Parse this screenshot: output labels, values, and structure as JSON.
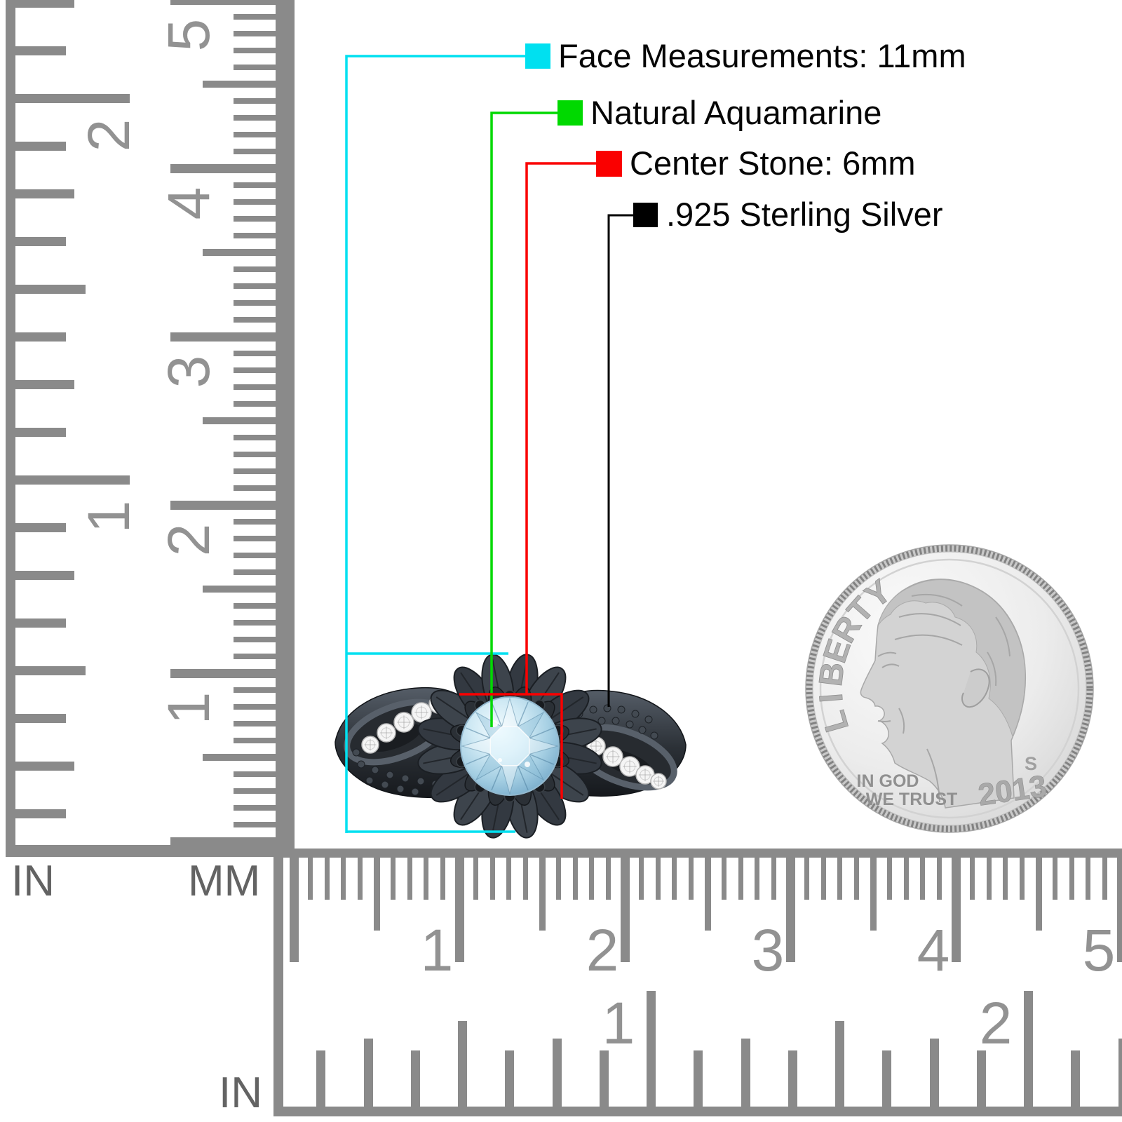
{
  "legend": {
    "items": [
      {
        "id": "face-measurements",
        "label": "Face Measurements: 11mm",
        "color": "#00e0f0"
      },
      {
        "id": "stone-type",
        "label": "Natural Aquamarine",
        "color": "#00d900"
      },
      {
        "id": "center-stone",
        "label": "Center Stone: 6mm",
        "color": "#fa0000"
      },
      {
        "id": "metal",
        "label": ".925 Sterling Silver",
        "color": "#000000"
      }
    ]
  },
  "rulers": {
    "left_inch": {
      "unit": "IN",
      "numbers": [
        "1",
        "2"
      ]
    },
    "left_mm": {
      "unit": "MM",
      "numbers": [
        "1",
        "2",
        "3",
        "4",
        "5"
      ]
    },
    "bottom_mm": {
      "numbers": [
        "1",
        "2",
        "3",
        "4",
        "5"
      ]
    },
    "bottom_inch": {
      "unit": "IN",
      "numbers": [
        "1",
        "2"
      ]
    }
  },
  "coin": {
    "legend_text": "LIBERTY",
    "motto_line1": "IN GOD",
    "motto_line2": "WE TRUST",
    "year": "2013",
    "mint_mark": "S"
  }
}
